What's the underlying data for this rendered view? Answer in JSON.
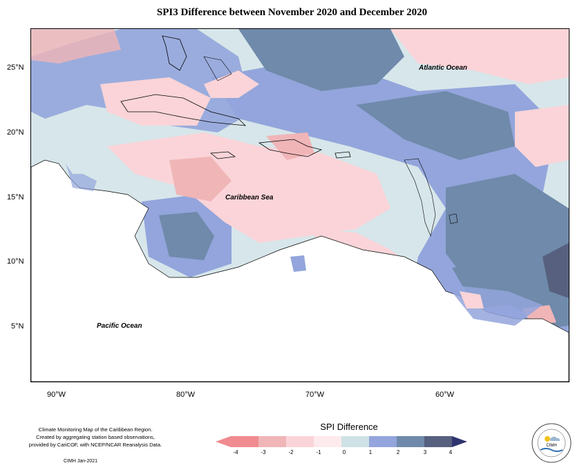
{
  "title": "SPI3 Difference between November 2020 and December 2020",
  "axes": {
    "lat_ticks": [
      "25°N",
      "20°N",
      "15°N",
      "10°N",
      "5°N"
    ],
    "lon_ticks": [
      "90°W",
      "80°W",
      "70°W",
      "60°W"
    ]
  },
  "labels": {
    "atlantic": "Atlantic Ocean",
    "caribbean": "Caribbean Sea",
    "pacific": "Pacific Ocean"
  },
  "legend": {
    "title": "SPI Difference",
    "tick_labels": [
      "-4",
      "-3",
      "-2",
      "-1",
      "0",
      "1",
      "2",
      "3",
      "4"
    ],
    "colors": [
      "#f08b8f",
      "#f0b5b7",
      "#fad4d8",
      "#fdeaec",
      "#cfe2e6",
      "#93a5dc",
      "#6f8aaa",
      "#57607f",
      "#2f3470"
    ]
  },
  "credit": {
    "lines": [
      "Climate Monitoring Map of the Caribbean Region.",
      "Created by aggregating station based observations,",
      "provided by CariCOF, with NCEP/NCAR Reanalysis Data."
    ],
    "stamp": "CIMH  Jan-2021"
  },
  "logo": {
    "text": "CIMH"
  }
}
